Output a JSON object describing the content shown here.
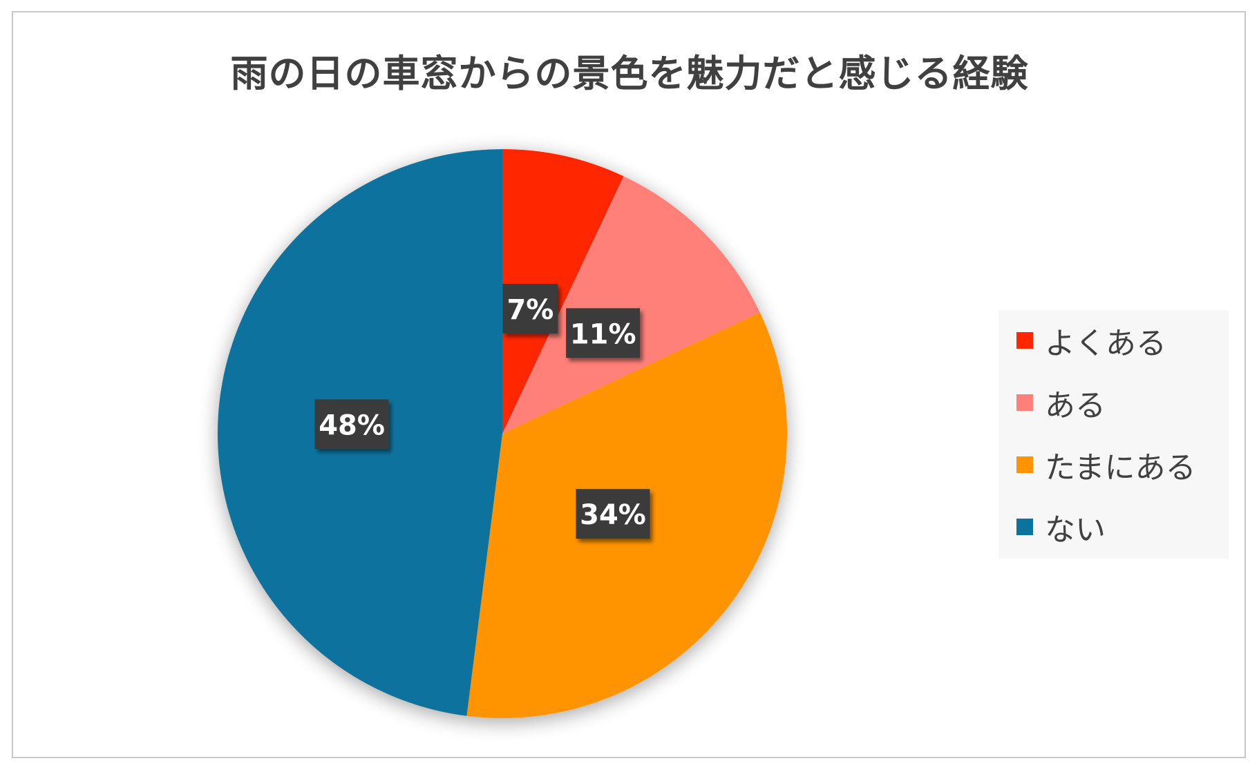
{
  "chart_data": {
    "type": "pie",
    "title": "雨の日の車窓からの景色を魅力だと感じる経験",
    "categories": [
      "よくある",
      "ある",
      "たまにある",
      "ない"
    ],
    "values": [
      7,
      11,
      34,
      48
    ],
    "data_labels": [
      "7%",
      "11%",
      "34%",
      "48%"
    ],
    "colors": [
      "#FF2600",
      "#FF8078",
      "#FF9300",
      "#0A739E"
    ],
    "start_angle_deg": 0,
    "direction": "clockwise",
    "legend_position": "right",
    "label_box_color": "#3a3a3a",
    "label_text_color": "#ffffff"
  }
}
